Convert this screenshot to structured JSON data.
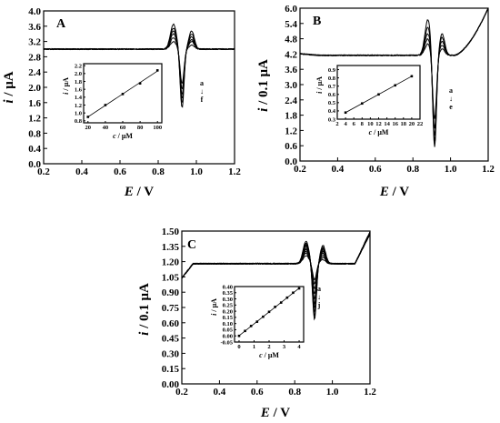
{
  "chart_data": [
    {
      "panel": "A",
      "type": "line",
      "xlabel": "E / V",
      "ylabel": "i / μA",
      "xlim": [
        0.2,
        1.2
      ],
      "ylim": [
        0.0,
        4.0
      ],
      "xticks": [
        "0.2",
        "0.4",
        "0.6",
        "0.8",
        "1.0",
        "1.2"
      ],
      "yticks": [
        "0.0",
        "0.4",
        "0.8",
        "1.2",
        "1.6",
        "2.0",
        "2.4",
        "2.8",
        "3.2",
        "3.6",
        "4.0"
      ],
      "baseline": 3.0,
      "peaks": {
        "pre": 0.88,
        "dip": 0.925,
        "post": 0.975
      },
      "series": [
        {
          "label": "a",
          "pre": 3.2,
          "dip": 2.1,
          "post": 3.1
        },
        {
          "label": "",
          "pre": 3.3,
          "dip": 1.95,
          "post": 3.2
        },
        {
          "label": "",
          "pre": 3.4,
          "dip": 1.8,
          "post": 3.25
        },
        {
          "label": "",
          "pre": 3.48,
          "dip": 1.7,
          "post": 3.32
        },
        {
          "label": "",
          "pre": 3.55,
          "dip": 1.58,
          "post": 3.4
        },
        {
          "label": "f",
          "pre": 3.65,
          "dip": 1.45,
          "post": 3.48
        }
      ],
      "annotation": [
        "a",
        "↓",
        "f"
      ],
      "inset": {
        "type": "scatter",
        "xlabel": "c / μM",
        "ylabel": "i / μA",
        "xlim": [
          15,
          105
        ],
        "ylim": [
          0.75,
          2.25
        ],
        "xticks": [
          "20",
          "40",
          "60",
          "80",
          "100"
        ],
        "yticks": [
          "0.8",
          "1.0",
          "1.2",
          "1.4",
          "1.6",
          "1.8",
          "2.0",
          "2.2"
        ],
        "x": [
          20,
          40,
          60,
          80,
          100
        ],
        "y": [
          0.9,
          1.2,
          1.48,
          1.75,
          2.08
        ]
      }
    },
    {
      "panel": "B",
      "type": "line",
      "xlabel": "E / V",
      "ylabel": "i / 0.1 μA",
      "xlim": [
        0.2,
        1.2
      ],
      "ylim": [
        0.0,
        6.0
      ],
      "xticks": [
        "0.2",
        "0.4",
        "0.6",
        "0.8",
        "1.0",
        "1.2"
      ],
      "yticks": [
        "0.0",
        "0.6",
        "1.2",
        "1.8",
        "2.4",
        "3.0",
        "3.6",
        "4.2",
        "4.8",
        "5.4",
        "6.0"
      ],
      "baseline": 4.15,
      "peaks": {
        "pre": 0.88,
        "dip": 0.915,
        "post": 0.955
      },
      "series": [
        {
          "label": "a",
          "pre": 4.6,
          "dip": 1.6,
          "post": 4.4
        },
        {
          "label": "",
          "pre": 4.8,
          "dip": 1.2,
          "post": 4.55
        },
        {
          "label": "",
          "pre": 5.0,
          "dip": 0.9,
          "post": 4.7
        },
        {
          "label": "",
          "pre": 5.25,
          "dip": 0.65,
          "post": 4.85
        },
        {
          "label": "e",
          "pre": 5.55,
          "dip": 0.4,
          "post": 5.0
        }
      ],
      "annotation": [
        "a",
        "↓",
        "e"
      ],
      "inset": {
        "type": "scatter",
        "xlabel": "c / μM",
        "ylabel": "i / μA",
        "xlim": [
          2,
          22
        ],
        "ylim": [
          0.3,
          0.95
        ],
        "xticks": [
          "2",
          "4",
          "6",
          "8",
          "10",
          "12",
          "14",
          "16",
          "18",
          "20",
          "22"
        ],
        "yticks": [
          "0.3",
          "0.4",
          "0.5",
          "0.6",
          "0.7",
          "0.8",
          "0.9"
        ],
        "x": [
          4,
          8,
          12,
          16,
          20
        ],
        "y": [
          0.38,
          0.49,
          0.6,
          0.71,
          0.82
        ]
      }
    },
    {
      "panel": "C",
      "type": "line",
      "xlabel": "E / V",
      "ylabel": "i / 0.1 μA",
      "xlim": [
        0.2,
        1.2
      ],
      "ylim": [
        0.0,
        1.5
      ],
      "xticks": [
        "0.2",
        "0.4",
        "0.6",
        "0.8",
        "1.0",
        "1.2"
      ],
      "yticks": [
        "0.00",
        "0.15",
        "0.30",
        "0.45",
        "0.60",
        "0.75",
        "0.90",
        "1.05",
        "1.20",
        "1.35",
        "1.50"
      ],
      "baseline": 1.18,
      "peaks": {
        "pre": 0.86,
        "dip": 0.905,
        "post": 0.95
      },
      "series": [
        {
          "label": "a",
          "pre": 1.26,
          "dip": 1.02,
          "post": 1.22
        },
        {
          "label": "",
          "pre": 1.28,
          "dip": 0.98,
          "post": 1.24
        },
        {
          "label": "",
          "pre": 1.3,
          "dip": 0.93,
          "post": 1.26
        },
        {
          "label": "",
          "pre": 1.32,
          "dip": 0.88,
          "post": 1.28
        },
        {
          "label": "",
          "pre": 1.33,
          "dip": 0.83,
          "post": 1.3
        },
        {
          "label": "",
          "pre": 1.35,
          "dip": 0.78,
          "post": 1.31
        },
        {
          "label": "",
          "pre": 1.36,
          "dip": 0.74,
          "post": 1.32
        },
        {
          "label": "",
          "pre": 1.37,
          "dip": 0.7,
          "post": 1.33
        },
        {
          "label": "",
          "pre": 1.38,
          "dip": 0.66,
          "post": 1.34
        },
        {
          "label": "j",
          "pre": 1.4,
          "dip": 0.63,
          "post": 1.36
        }
      ],
      "annotation": [
        "a",
        "↓",
        "j"
      ],
      "inset": {
        "type": "scatter",
        "xlabel": "c / μM",
        "ylabel": "i / μA",
        "xlim": [
          -0.3,
          4.3
        ],
        "ylim": [
          -0.05,
          0.4
        ],
        "xticks": [
          "0",
          "1",
          "2",
          "3",
          "4"
        ],
        "yticks": [
          "-0.05",
          "0.00",
          "0.05",
          "0.10",
          "0.15",
          "0.20",
          "0.25",
          "0.30",
          "0.35",
          "0.40"
        ],
        "x": [
          0.0,
          0.4,
          0.8,
          1.2,
          1.6,
          2.0,
          2.4,
          2.8,
          3.2,
          3.6,
          4.0
        ],
        "y": [
          0.0,
          0.04,
          0.08,
          0.115,
          0.155,
          0.195,
          0.235,
          0.27,
          0.31,
          0.35,
          0.385
        ]
      }
    }
  ]
}
